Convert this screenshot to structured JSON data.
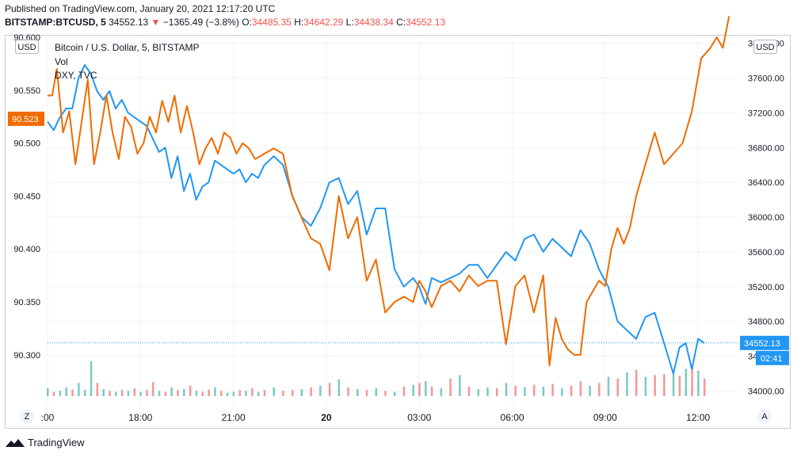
{
  "header": {
    "published": "Published on TradingView.com, January 20, 2021 12:17:20 UTC",
    "symbol": "BITSTAMP:BTCUSD, 5",
    "last": "34552.13",
    "arrow": "▼",
    "change": "−1365.49 (−3.8%)",
    "o_label": "O:",
    "o_value": "34485.35",
    "h_label": "H:",
    "h_value": "34642.29",
    "l_label": "L:",
    "l_value": "34438.34",
    "c_label": "C:",
    "c_value": "34552.13"
  },
  "legend": {
    "main": "Bitcoin / U.S. Dollar, 5, BITSTAMP",
    "vol": "Vol",
    "dxy": "DXY, TVC"
  },
  "controls": {
    "left_unit": "USD",
    "right_unit": "USD",
    "zoom": "Z",
    "auto": "A"
  },
  "footer": {
    "brand": "TradingView"
  },
  "colors": {
    "btc": "#2196f3",
    "dxy": "#ef6c00",
    "vol_up": "#26a69a",
    "vol_down": "#ef5350",
    "grid": "#f0f3fa"
  },
  "chart_data": {
    "type": "line",
    "title": "Bitcoin / U.S. Dollar, 5, BITSTAMP",
    "xlabel": "",
    "ylabel": "",
    "x_ticks": [
      ":00",
      "18:00",
      "21:00",
      "20",
      "03:00",
      "06:00",
      "09:00",
      "12:00"
    ],
    "x_ticks_hours": [
      15,
      18,
      21,
      24,
      27,
      30,
      33,
      36
    ],
    "x_range_hours": [
      15,
      37.3
    ],
    "right_axis": {
      "label": "USD",
      "ticks": [
        "34000.00",
        "34400.00",
        "34800.00",
        "35200.00",
        "35600.00",
        "36000.00",
        "36400.00",
        "36800.00",
        "37200.00",
        "37600.00",
        "38000.00"
      ],
      "tick_values": [
        34000,
        34400,
        34800,
        35200,
        35600,
        36000,
        36400,
        36800,
        37200,
        37600,
        38000
      ],
      "range": [
        33830,
        38070
      ]
    },
    "left_axis": {
      "label": "USD",
      "ticks": [
        "90.300",
        "90.350",
        "90.400",
        "90.450",
        "90.500",
        "90.550",
        "90.600"
      ],
      "tick_values": [
        90.3,
        90.35,
        90.4,
        90.45,
        90.5,
        90.55,
        90.6
      ],
      "range": [
        90.252,
        90.6
      ]
    },
    "price_label": "34552.13",
    "price_value": 34552.13,
    "countdown_label": "02:41",
    "dxy_label": "90.523",
    "dxy_value": 90.523,
    "series": [
      {
        "name": "BTCUSD",
        "axis": "right",
        "color": "#2196f3",
        "x": [
          15.0,
          15.2,
          15.4,
          15.6,
          15.8,
          16.0,
          16.2,
          16.4,
          16.6,
          16.8,
          17.0,
          17.2,
          17.4,
          17.6,
          17.8,
          18.0,
          18.2,
          18.4,
          18.6,
          18.8,
          19.0,
          19.2,
          19.4,
          19.6,
          19.8,
          20.0,
          20.2,
          20.4,
          20.6,
          20.8,
          21.0,
          21.2,
          21.4,
          21.6,
          21.8,
          22.0,
          22.3,
          22.6,
          22.9,
          23.2,
          23.5,
          23.8,
          24.1,
          24.4,
          24.7,
          25.0,
          25.3,
          25.6,
          25.9,
          26.2,
          26.5,
          26.8,
          27.0,
          27.2,
          27.4,
          27.7,
          28.0,
          28.3,
          28.6,
          28.9,
          29.2,
          29.5,
          29.8,
          30.1,
          30.4,
          30.7,
          31.0,
          31.3,
          31.6,
          31.9,
          32.2,
          32.5,
          32.8,
          33.1,
          33.4,
          33.7,
          34.0,
          34.3,
          34.6,
          34.9,
          35.2,
          35.4,
          35.6,
          35.8,
          36.0,
          36.2
        ],
        "y": [
          37100,
          37000,
          37150,
          37250,
          37250,
          37600,
          37750,
          37650,
          37450,
          37350,
          37450,
          37250,
          37350,
          37200,
          37150,
          37100,
          37050,
          36900,
          36750,
          36800,
          36450,
          36700,
          36300,
          36500,
          36200,
          36350,
          36400,
          36650,
          36600,
          36550,
          36500,
          36550,
          36400,
          36500,
          36450,
          36600,
          36700,
          36600,
          36250,
          36000,
          35900,
          36100,
          36400,
          36450,
          36150,
          36300,
          35800,
          36100,
          36100,
          35400,
          35200,
          35300,
          35200,
          35000,
          35300,
          35250,
          35300,
          35350,
          35450,
          35450,
          35300,
          35450,
          35600,
          35500,
          35750,
          35800,
          35600,
          35750,
          35650,
          35550,
          35850,
          35700,
          35400,
          35200,
          34800,
          34700,
          34600,
          34850,
          34900,
          34550,
          34200,
          34500,
          34550,
          34250,
          34600,
          34550
        ]
      },
      {
        "name": "DXY",
        "axis": "left",
        "color": "#ef6c00",
        "x": [
          15.0,
          15.15,
          15.3,
          15.5,
          15.7,
          15.9,
          16.1,
          16.3,
          16.5,
          16.7,
          16.9,
          17.1,
          17.3,
          17.5,
          17.7,
          17.9,
          18.1,
          18.3,
          18.5,
          18.7,
          18.9,
          19.1,
          19.3,
          19.5,
          19.7,
          19.9,
          20.1,
          20.3,
          20.5,
          20.7,
          20.9,
          21.1,
          21.3,
          21.5,
          21.7,
          22.0,
          22.3,
          22.6,
          22.9,
          23.2,
          23.5,
          23.8,
          24.1,
          24.4,
          24.7,
          25.0,
          25.3,
          25.6,
          25.9,
          26.2,
          26.5,
          26.8,
          27.0,
          27.2,
          27.4,
          27.7,
          28.0,
          28.3,
          28.6,
          28.9,
          29.2,
          29.5,
          29.8,
          30.1,
          30.4,
          30.7,
          31.0,
          31.2,
          31.4,
          31.6,
          31.8,
          32.0,
          32.2,
          32.4,
          32.6,
          32.8,
          33.0,
          33.2,
          33.4,
          33.6,
          33.8,
          34.0,
          34.3,
          34.6,
          34.9,
          35.2,
          35.5,
          35.8,
          36.1,
          36.4,
          36.6,
          36.8,
          37.0
        ],
        "y": [
          90.545,
          90.545,
          90.57,
          90.51,
          90.53,
          90.48,
          90.52,
          90.56,
          90.48,
          90.51,
          90.545,
          90.51,
          90.485,
          90.525,
          90.515,
          90.49,
          90.5,
          90.525,
          90.51,
          90.54,
          90.52,
          90.545,
          90.51,
          90.535,
          90.51,
          90.48,
          90.495,
          90.505,
          90.49,
          90.51,
          90.505,
          90.49,
          90.5,
          90.495,
          90.485,
          90.49,
          90.495,
          90.49,
          90.45,
          90.43,
          90.41,
          90.405,
          90.38,
          90.45,
          90.41,
          90.43,
          90.37,
          90.39,
          90.34,
          90.35,
          90.355,
          90.35,
          90.37,
          90.36,
          90.345,
          90.365,
          90.37,
          90.36,
          90.375,
          90.365,
          90.37,
          90.37,
          90.31,
          90.365,
          90.375,
          90.34,
          90.375,
          90.29,
          90.335,
          90.315,
          90.305,
          90.3,
          90.3,
          90.35,
          90.36,
          90.37,
          90.365,
          90.4,
          90.42,
          90.405,
          90.42,
          90.45,
          90.48,
          90.51,
          90.48,
          90.49,
          90.5,
          90.53,
          90.58,
          90.59,
          90.6,
          90.59,
          90.62
        ]
      }
    ],
    "volume": {
      "x": [
        15.0,
        15.2,
        15.4,
        15.6,
        15.8,
        16.0,
        16.2,
        16.4,
        16.6,
        16.8,
        17.0,
        17.2,
        17.4,
        17.6,
        17.8,
        18.0,
        18.2,
        18.4,
        18.6,
        18.8,
        19.0,
        19.2,
        19.4,
        19.6,
        19.8,
        20.0,
        20.2,
        20.4,
        20.6,
        20.8,
        21.0,
        21.2,
        21.4,
        21.6,
        21.8,
        22.0,
        22.3,
        22.6,
        22.9,
        23.2,
        23.5,
        23.8,
        24.1,
        24.4,
        24.7,
        25.0,
        25.3,
        25.6,
        25.9,
        26.2,
        26.5,
        26.8,
        27.0,
        27.2,
        27.4,
        27.7,
        28.0,
        28.3,
        28.6,
        28.9,
        29.2,
        29.5,
        29.8,
        30.1,
        30.4,
        30.7,
        31.0,
        31.3,
        31.6,
        31.9,
        32.2,
        32.5,
        32.8,
        33.1,
        33.4,
        33.7,
        34.0,
        34.3,
        34.6,
        34.9,
        35.2,
        35.4,
        35.6,
        35.8,
        36.0,
        36.2
      ],
      "values": [
        18,
        10,
        12,
        20,
        15,
        30,
        14,
        80,
        30,
        16,
        12,
        10,
        14,
        12,
        18,
        10,
        14,
        32,
        12,
        10,
        20,
        14,
        16,
        24,
        12,
        10,
        15,
        20,
        12,
        8,
        10,
        14,
        12,
        18,
        10,
        14,
        20,
        12,
        14,
        16,
        20,
        24,
        30,
        38,
        20,
        16,
        14,
        18,
        12,
        10,
        22,
        26,
        30,
        34,
        22,
        18,
        40,
        48,
        22,
        16,
        20,
        18,
        30,
        24,
        20,
        26,
        22,
        28,
        18,
        24,
        34,
        24,
        30,
        44,
        40,
        54,
        60,
        44,
        48,
        50,
        56,
        46,
        62,
        70,
        58,
        40
      ],
      "up": [
        true,
        false,
        true,
        true,
        false,
        true,
        true,
        true,
        false,
        true,
        false,
        true,
        false,
        true,
        false,
        true,
        false,
        false,
        true,
        false,
        true,
        false,
        true,
        false,
        true,
        false,
        false,
        true,
        false,
        true,
        true,
        false,
        true,
        false,
        true,
        false,
        true,
        false,
        false,
        true,
        false,
        true,
        false,
        true,
        false,
        true,
        false,
        true,
        false,
        true,
        false,
        true,
        false,
        true,
        false,
        true,
        false,
        true,
        false,
        true,
        true,
        false,
        true,
        false,
        true,
        false,
        true,
        false,
        true,
        false,
        false,
        true,
        false,
        true,
        false,
        true,
        false,
        true,
        false,
        false,
        true,
        false,
        true,
        false,
        true,
        false
      ],
      "max": 180
    }
  }
}
